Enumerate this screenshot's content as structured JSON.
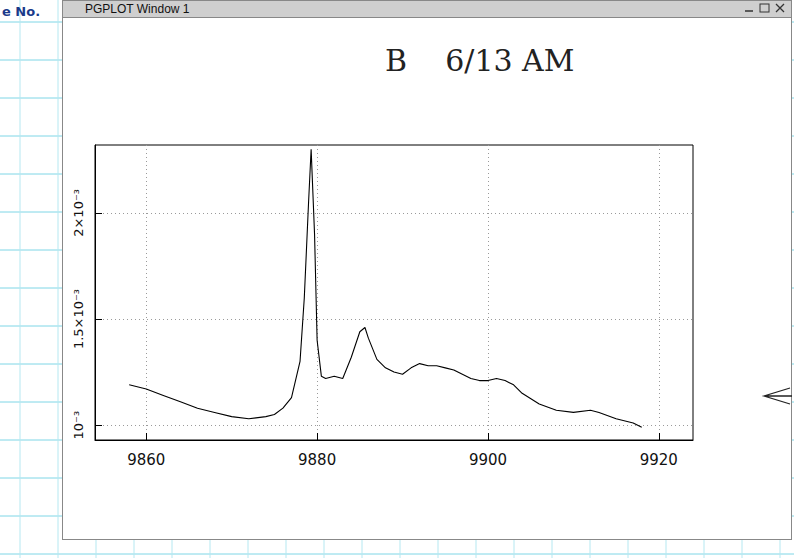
{
  "page": {
    "label": "e No."
  },
  "window": {
    "title": "PGPLOT Window 1"
  },
  "chart_data": {
    "type": "line",
    "title": "B    6/13 AM",
    "color": "#000000",
    "grid": true,
    "x": [
      9858,
      9860,
      9862,
      9864,
      9866,
      9868,
      9870,
      9872,
      9874,
      9875,
      9876,
      9877,
      9878,
      9878.5,
      9879,
      9879.3,
      9879.7,
      9880,
      9880.5,
      9881,
      9882,
      9883,
      9884,
      9885,
      9885.6,
      9886,
      9887,
      9888,
      9889,
      9890,
      9891,
      9892,
      9893,
      9894,
      9895,
      9896,
      9897,
      9898,
      9899,
      9900,
      9901,
      9902,
      9903,
      9904,
      9906,
      9908,
      9910,
      9912,
      9913,
      9915,
      9917,
      9918
    ],
    "values": [
      0.00119,
      0.00117,
      0.00114,
      0.00111,
      0.00108,
      0.00106,
      0.00104,
      0.00103,
      0.00104,
      0.00105,
      0.00108,
      0.00113,
      0.0013,
      0.0016,
      0.00205,
      0.0023,
      0.0019,
      0.0014,
      0.00123,
      0.00122,
      0.00123,
      0.00122,
      0.00132,
      0.00144,
      0.00146,
      0.00141,
      0.00131,
      0.00127,
      0.00125,
      0.00124,
      0.00127,
      0.00129,
      0.00128,
      0.00128,
      0.00127,
      0.00126,
      0.00124,
      0.00122,
      0.00121,
      0.00121,
      0.00122,
      0.00121,
      0.00119,
      0.00115,
      0.0011,
      0.00107,
      0.00106,
      0.00107,
      0.00106,
      0.00103,
      0.00101,
      0.00099
    ],
    "xlim": [
      9854,
      9924
    ],
    "xticks": [
      9860,
      9880,
      9900,
      9920
    ],
    "ylim": [
      0.00093,
      0.00232
    ],
    "yticks": [
      {
        "value": 0.001,
        "label": "10⁻³"
      },
      {
        "value": 0.0015,
        "label": "1.5×10⁻³"
      },
      {
        "value": 0.002,
        "label": "2×10⁻³"
      }
    ]
  }
}
